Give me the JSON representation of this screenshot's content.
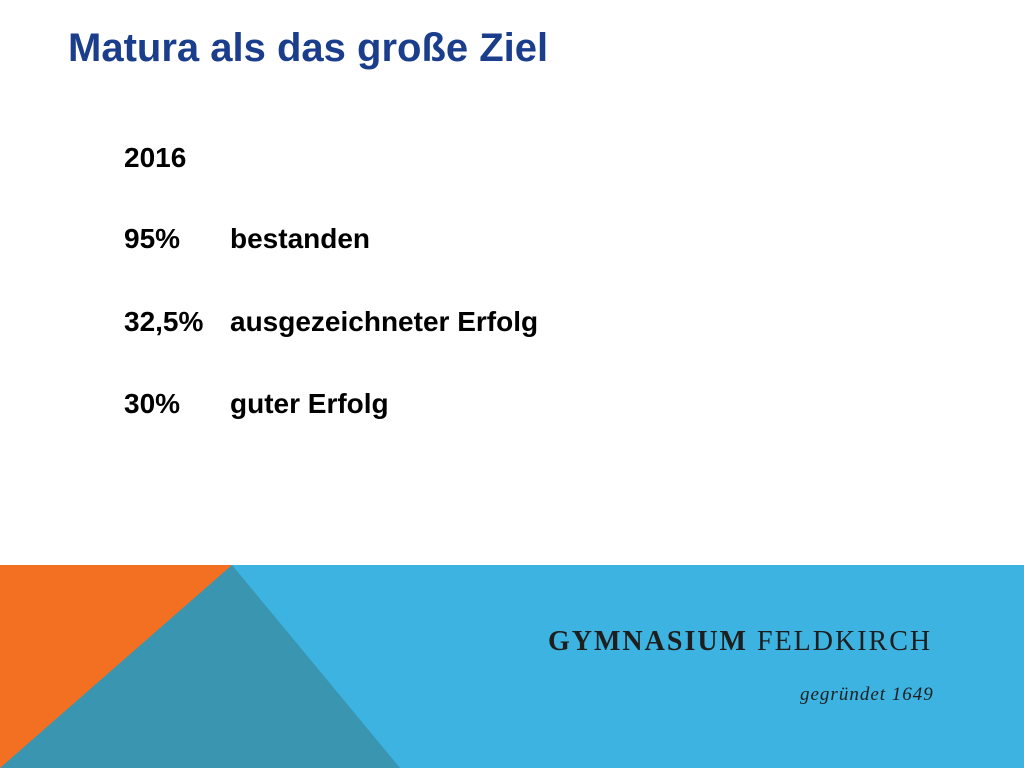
{
  "title": "Matura als das große Ziel",
  "year": "2016",
  "results": [
    {
      "percent": "95%",
      "label": "bestanden"
    },
    {
      "percent": "32,5%",
      "label": "ausgezeichneter Erfolg"
    },
    {
      "percent": "30%",
      "label": "guter Erfolg"
    }
  ],
  "footer": {
    "school_name_part1": "GYMNASIUM",
    "school_name_part2": "FELDKIRCH",
    "founded": "gegründet 1649",
    "colors": {
      "blue": "#3cb3e0",
      "dark_blue": "#3a95b0",
      "orange": "#f36f21"
    }
  }
}
